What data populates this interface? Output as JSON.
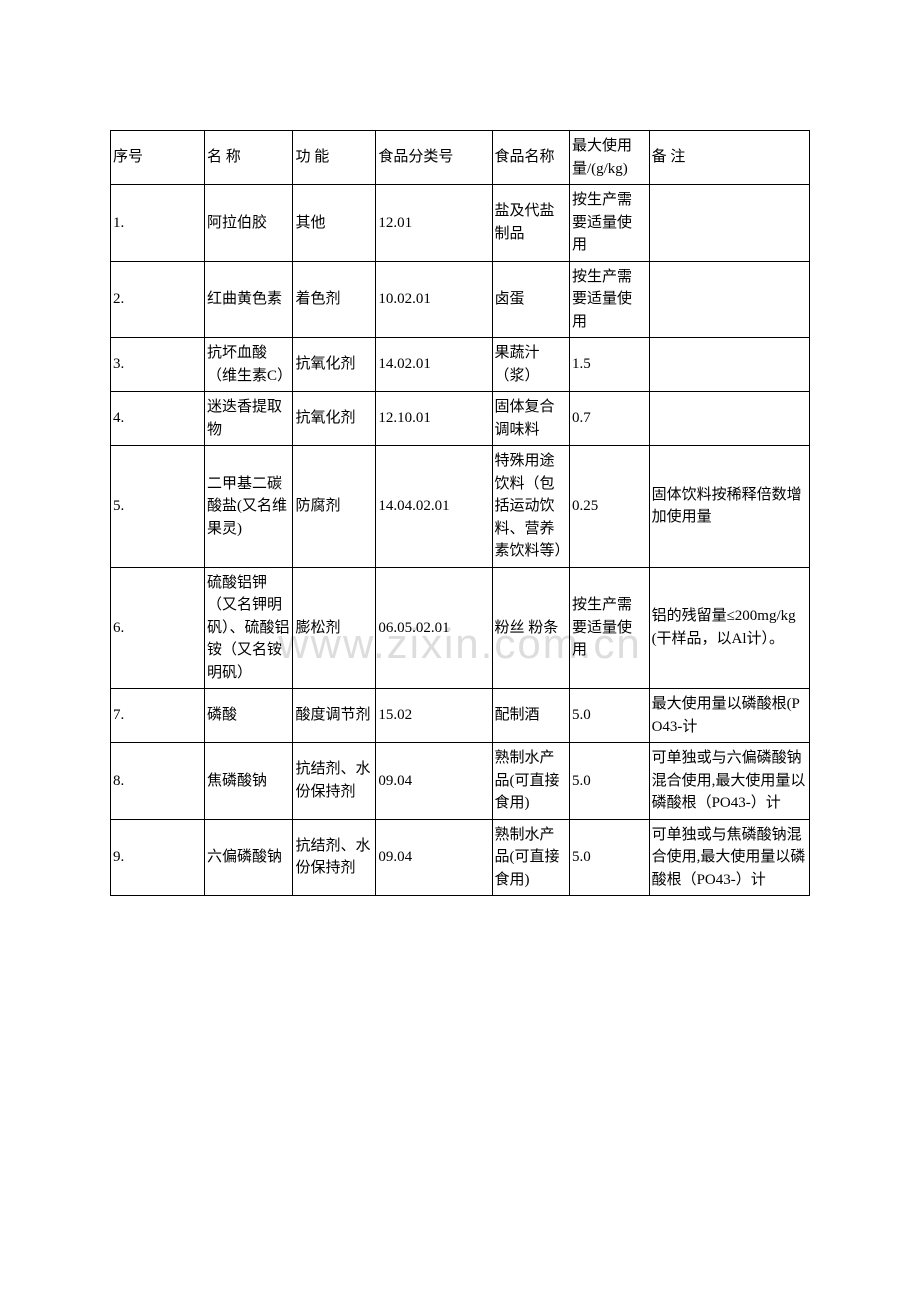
{
  "watermark": "www.zixin.com.cn",
  "header": {
    "seq": "序号",
    "name": "名 称",
    "func": "功 能",
    "cat": "食品分类号",
    "food": "食品名称",
    "max": "最大使用量/(g/kg)",
    "note": "备      注"
  },
  "rows": [
    {
      "seq": "1.",
      "name": "阿拉伯胶",
      "func": "其他",
      "cat": "12.01",
      "food": "盐及代盐制品",
      "max": "按生产需要适量使用",
      "note": ""
    },
    {
      "seq": "2.",
      "name": "红曲黄色素",
      "func": "着色剂",
      "cat": "10.02.01",
      "food": "卤蛋",
      "max": "按生产需要适量使用",
      "note": ""
    },
    {
      "seq": "3.",
      "name": "抗坏血酸（维生素C）",
      "func": "抗氧化剂",
      "cat": "14.02.01",
      "food": "果蔬汁（浆）",
      "max": "1.5",
      "note": ""
    },
    {
      "seq": "4.",
      "name": "迷迭香提取物",
      "func": "抗氧化剂",
      "cat": "12.10.01",
      "food": "固体复合调味料",
      "max": "0.7",
      "note": ""
    },
    {
      "seq": "5.",
      "name": "二甲基二碳酸盐(又名维果灵)",
      "func": "防腐剂",
      "cat": "14.04.02.01",
      "food": "特殊用途饮料（包括运动饮料、营养素饮料等）",
      "max": "0.25",
      "note": "固体饮料按稀释倍数增加使用量"
    },
    {
      "seq": "6.",
      "name": "硫酸铝钾（又名钾明矾）、硫酸铝铵（又名铵明矾）",
      "func": "膨松剂",
      "cat": "06.05.02.01",
      "food": "粉丝 粉条",
      "max": "按生产需要适量使用",
      "note": "铝的残留量≤200mg/kg(干样品，以Al计）。"
    },
    {
      "seq": "7.",
      "name": "磷酸",
      "func": "酸度调节剂",
      "cat": "15.02",
      "food": "配制酒",
      "max": "5.0",
      "note": "最大使用量以磷酸根(PO43-计"
    },
    {
      "seq": "8.",
      "name": "焦磷酸钠",
      "func": "抗结剂、水份保持剂",
      "cat": "09.04",
      "food": "熟制水产品(可直接食用)",
      "max": "5.0",
      "note": "可单独或与六偏磷酸钠混合使用,最大使用量以磷酸根（PO43-）计"
    },
    {
      "seq": "9.",
      "name": "六偏磷酸钠",
      "func": "抗结剂、水份保持剂",
      "cat": "09.04",
      "food": "熟制水产品(可直接食用)",
      "max": "5.0",
      "note": "可单独或与焦磷酸钠混合使用,最大使用量以磷酸根（PO43-）计"
    }
  ]
}
